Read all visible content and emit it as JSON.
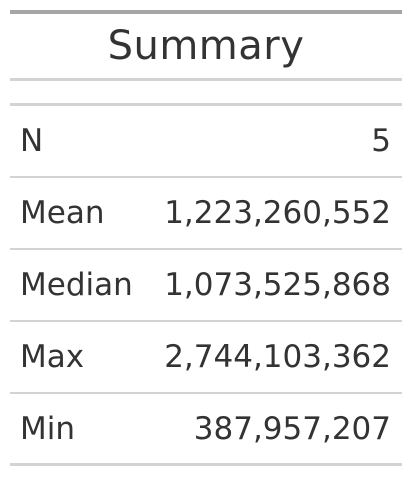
{
  "table": {
    "title": "Summary",
    "rows": [
      {
        "label": "N",
        "value": "5"
      },
      {
        "label": "Mean",
        "value": "1,223,260,552"
      },
      {
        "label": "Median",
        "value": "1,073,525,868"
      },
      {
        "label": "Max",
        "value": "2,744,103,362"
      },
      {
        "label": "Min",
        "value": "387,957,207"
      }
    ]
  },
  "colors": {
    "text": "#333333",
    "top_rule": "#a6a6a6",
    "row_rule": "#d3d3d3",
    "background": "#ffffff"
  }
}
